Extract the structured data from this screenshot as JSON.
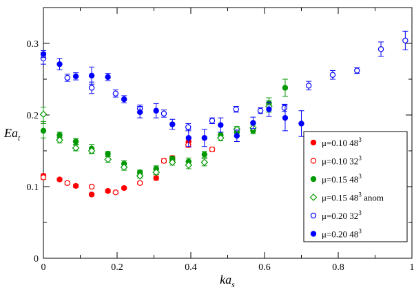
{
  "chart_data": {
    "type": "scatter",
    "xlabel": "ka",
    "xlabel_sub": "s",
    "ylabel": "Ea",
    "ylabel_sub": "t",
    "xlim": [
      0,
      1
    ],
    "ylim": [
      0,
      0.35
    ],
    "x_ticks": [
      "0",
      "0.2",
      "0.4",
      "0.6",
      "0.8",
      "1"
    ],
    "y_ticks": [
      "0",
      "0.1",
      "0.2",
      "0.3"
    ],
    "legend_position": "bottom-right",
    "series": [
      {
        "name": "μ=0.10 48",
        "name_sup": "3",
        "color": "#ff0000",
        "marker": "circle",
        "filled": true,
        "points": [
          [
            0,
            0.115,
            0.003
          ],
          [
            0.044,
            0.11,
            0.002
          ],
          [
            0.088,
            0.101,
            0.002
          ],
          [
            0.131,
            0.089,
            0.002
          ],
          [
            0.175,
            0.094,
            0.002
          ],
          [
            0.219,
            0.098,
            0.002
          ],
          [
            0.306,
            0.112,
            0.003
          ],
          [
            0.35,
            0.14,
            0.003
          ],
          [
            0.394,
            0.163,
            0.004
          ]
        ]
      },
      {
        "name": "μ=0.10 32",
        "name_sup": "3",
        "color": "#ff0000",
        "marker": "circle",
        "filled": false,
        "points": [
          [
            0,
            0.113,
            0.003
          ],
          [
            0.065,
            0.105,
            0.002
          ],
          [
            0.131,
            0.1,
            0.002
          ],
          [
            0.196,
            0.092,
            0.002
          ],
          [
            0.262,
            0.105,
            0.002
          ],
          [
            0.327,
            0.136,
            0.003
          ],
          [
            0.393,
            0.158,
            0.003
          ],
          [
            0.458,
            0.152,
            0.003
          ]
        ]
      },
      {
        "name": "μ=0.15 48",
        "name_sup": "3",
        "color": "#009900",
        "marker": "circle",
        "filled": true,
        "points": [
          [
            0,
            0.178,
            0.01
          ],
          [
            0.044,
            0.172,
            0.004
          ],
          [
            0.088,
            0.163,
            0.004
          ],
          [
            0.131,
            0.153,
            0.006
          ],
          [
            0.175,
            0.146,
            0.003
          ],
          [
            0.219,
            0.132,
            0.004
          ],
          [
            0.262,
            0.12,
            0.003
          ],
          [
            0.306,
            0.125,
            0.004
          ],
          [
            0.35,
            0.139,
            0.003
          ],
          [
            0.394,
            0.135,
            0.005
          ],
          [
            0.437,
            0.145,
            0.004
          ],
          [
            0.481,
            0.172,
            0.004
          ],
          [
            0.525,
            0.176,
            0.006
          ],
          [
            0.569,
            0.178,
            0.004
          ],
          [
            0.612,
            0.216,
            0.008
          ],
          [
            0.656,
            0.238,
            0.012
          ]
        ]
      },
      {
        "name": "μ=0.15 48",
        "name_sup": "3",
        "name_suffix": " anom",
        "color": "#009900",
        "marker": "diamond",
        "filled": false,
        "points": [
          [
            0,
            0.201,
            0.01
          ],
          [
            0.044,
            0.165,
            0.004
          ],
          [
            0.088,
            0.154,
            0.004
          ],
          [
            0.131,
            0.15,
            0.004
          ],
          [
            0.175,
            0.138,
            0.004
          ],
          [
            0.219,
            0.127,
            0.004
          ],
          [
            0.262,
            0.115,
            0.003
          ],
          [
            0.306,
            0.12,
            0.003
          ],
          [
            0.35,
            0.134,
            0.004
          ],
          [
            0.394,
            0.13,
            0.005
          ],
          [
            0.437,
            0.134,
            0.005
          ],
          [
            0.481,
            0.168,
            0.004
          ],
          [
            0.525,
            0.18,
            0.004
          ],
          [
            0.569,
            0.182,
            0.004
          ],
          [
            0.612,
            0.212,
            0.008
          ]
        ]
      },
      {
        "name": "μ=0.20 32",
        "name_sup": "3",
        "color": "#0000ff",
        "marker": "circle",
        "filled": false,
        "points": [
          [
            0,
            0.279,
            0.008
          ],
          [
            0.065,
            0.252,
            0.005
          ],
          [
            0.131,
            0.238,
            0.008
          ],
          [
            0.196,
            0.23,
            0.005
          ],
          [
            0.262,
            0.209,
            0.005
          ],
          [
            0.327,
            0.202,
            0.005
          ],
          [
            0.393,
            0.183,
            0.005
          ],
          [
            0.458,
            0.192,
            0.004
          ],
          [
            0.523,
            0.208,
            0.004
          ],
          [
            0.589,
            0.206,
            0.004
          ],
          [
            0.654,
            0.21,
            0.005
          ],
          [
            0.72,
            0.241,
            0.006
          ],
          [
            0.785,
            0.256,
            0.006
          ],
          [
            0.851,
            0.262,
            0.004
          ],
          [
            0.916,
            0.292,
            0.01
          ],
          [
            0.982,
            0.304,
            0.013
          ]
        ]
      },
      {
        "name": "μ=0.20 48",
        "name_sup": "3",
        "color": "#0000ff",
        "marker": "circle",
        "filled": true,
        "points": [
          [
            0,
            0.285,
            0.005
          ],
          [
            0.044,
            0.271,
            0.008
          ],
          [
            0.088,
            0.254,
            0.005
          ],
          [
            0.131,
            0.255,
            0.012
          ],
          [
            0.175,
            0.253,
            0.005
          ],
          [
            0.219,
            0.222,
            0.005
          ],
          [
            0.262,
            0.204,
            0.008
          ],
          [
            0.306,
            0.206,
            0.01
          ],
          [
            0.35,
            0.187,
            0.007
          ],
          [
            0.394,
            0.168,
            0.012
          ],
          [
            0.437,
            0.168,
            0.012
          ],
          [
            0.481,
            0.186,
            0.01
          ],
          [
            0.525,
            0.171,
            0.008
          ],
          [
            0.569,
            0.189,
            0.008
          ],
          [
            0.612,
            0.208,
            0.01
          ],
          [
            0.656,
            0.196,
            0.018
          ],
          [
            0.7,
            0.188,
            0.018
          ]
        ]
      }
    ]
  }
}
